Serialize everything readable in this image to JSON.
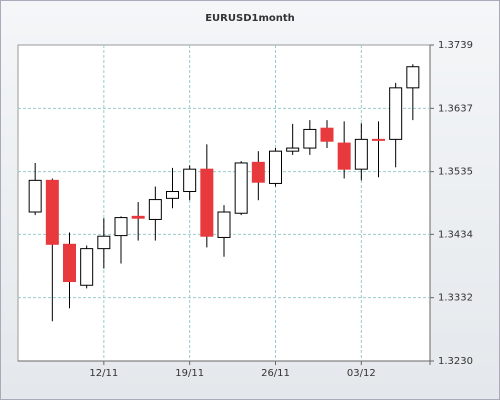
{
  "chart_data": {
    "type": "candlestick",
    "title": "EURUSD1month",
    "categories": [
      null,
      null,
      null,
      null,
      "12/11",
      null,
      null,
      null,
      null,
      "19/11",
      null,
      null,
      null,
      null,
      "26/11",
      null,
      null,
      null,
      null,
      "03/12",
      null,
      null,
      null
    ],
    "open": [
      1.347,
      1.3521,
      1.3418,
      1.3352,
      1.3411,
      1.3432,
      1.3463,
      1.3458,
      1.3492,
      1.3503,
      1.3539,
      1.3429,
      1.3468,
      1.355,
      1.3516,
      1.3568,
      1.3573,
      1.3605,
      1.3581,
      1.3539,
      1.3587,
      1.3587,
      1.367
    ],
    "high": [
      1.3549,
      1.3524,
      1.3437,
      1.3416,
      1.346,
      1.3463,
      1.3486,
      1.3511,
      1.3541,
      1.3545,
      1.3579,
      1.3481,
      1.3552,
      1.3568,
      1.3573,
      1.3612,
      1.3618,
      1.3618,
      1.3616,
      1.3613,
      1.3616,
      1.3678,
      1.3708
    ],
    "low": [
      1.3465,
      1.3294,
      1.3315,
      1.3347,
      1.3379,
      1.3387,
      1.3424,
      1.3424,
      1.3476,
      1.3489,
      1.3413,
      1.3398,
      1.3465,
      1.3489,
      1.3511,
      1.3562,
      1.3562,
      1.3573,
      1.3524,
      1.3521,
      1.3526,
      1.3542,
      1.3618
    ],
    "close": [
      1.3521,
      1.3418,
      1.3358,
      1.3411,
      1.3431,
      1.3461,
      1.346,
      1.349,
      1.3503,
      1.3539,
      1.3431,
      1.347,
      1.3549,
      1.3518,
      1.3568,
      1.3573,
      1.3603,
      1.3584,
      1.3539,
      1.3587,
      1.3586,
      1.367,
      1.3704
    ],
    "up_color": "#ffffff",
    "down_color": "#e8393c",
    "ylim": [
      1.323,
      1.3739
    ],
    "yticks": [
      {
        "value": 1.323,
        "label": "1.3230"
      },
      1.3332,
      1.3434,
      1.3535,
      1.3637,
      1.3739
    ],
    "grid": true,
    "y_axis_side": "right"
  }
}
